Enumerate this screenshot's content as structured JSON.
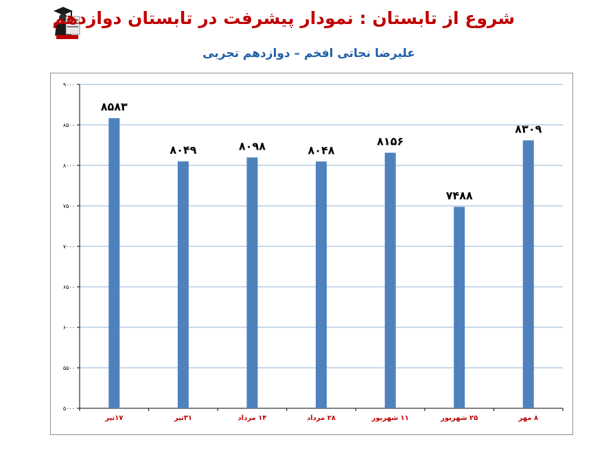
{
  "header": {
    "title": "شروع از تابستان : نمودار پیشرفت در تابستان دوازدهم",
    "subtitle": "علیرضا نجاتی افخم – دوازدهم تجربی"
  },
  "logo": {
    "icon": "graduate-logo-icon"
  },
  "colors": {
    "bar": "#4f81bd",
    "title": "#c00000",
    "subtitle": "#1f5fa6",
    "category_label": "#c00000",
    "gridline": "#8fb1d9"
  },
  "chart_data": {
    "type": "bar",
    "categories": [
      "۱۷تیر",
      "۳۱تیر",
      "۱۴ مرداد",
      "۲۸ مرداد",
      "۱۱ شهریور",
      "۲۵ شهریور",
      "۸ مهر"
    ],
    "values": [
      8583,
      8049,
      8098,
      8048,
      8156,
      7488,
      8309
    ],
    "value_labels": [
      "۸۵۸۳",
      "۸۰۴۹",
      "۸۰۹۸",
      "۸۰۴۸",
      "۸۱۵۶",
      "۷۴۸۸",
      "۸۳۰۹"
    ],
    "ylim": [
      5000,
      9000
    ],
    "yticks": [
      5000,
      5500,
      6000,
      6500,
      7000,
      7500,
      8000,
      8500,
      9000
    ],
    "ytick_labels": [
      "۵۰۰۰",
      "۵۵۰۰",
      "۶۰۰۰",
      "۶۵۰۰",
      "۷۰۰۰",
      "۷۵۰۰",
      "۸۰۰۰",
      "۸۵۰۰",
      "۹۰۰۰"
    ],
    "grid": true,
    "legend": "none"
  }
}
